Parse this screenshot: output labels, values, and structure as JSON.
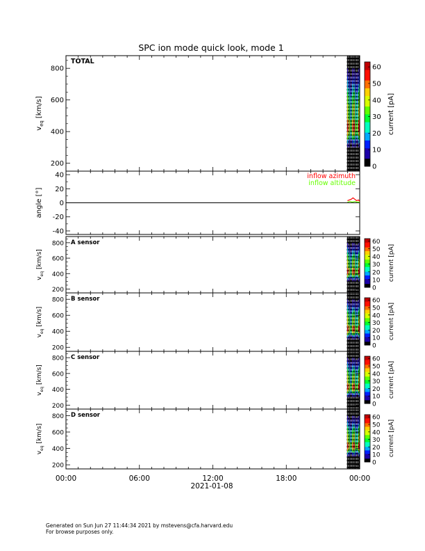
{
  "title": "SPC ion mode quick look, mode 1",
  "xaxis": {
    "date_label": "2021-01-08",
    "tick_labels": [
      "00:00",
      "06:00",
      "12:00",
      "18:00",
      "00:00"
    ],
    "range_hours": [
      0,
      24
    ]
  },
  "colorbar": {
    "label": "current [pA]",
    "ticks": [
      0,
      10,
      20,
      30,
      40,
      50,
      60
    ],
    "range": [
      0,
      63
    ],
    "colors": [
      "#000000",
      "#1c00a8",
      "#0020ff",
      "#00a8ff",
      "#00ffc0",
      "#00ff30",
      "#60ff00",
      "#d8ff00",
      "#ffd000",
      "#ff7000",
      "#ff1000",
      "#c00000"
    ]
  },
  "footer": {
    "line1": "Generated on Sun Jun 27 11:44:34 2021 by mstevens@cfa.harvard.edu",
    "line2": "For browse purposes only."
  },
  "chart_data": [
    {
      "type": "heatmap",
      "panel_label": "TOTAL",
      "ylabel_main": "v",
      "ylabel_sub": "eq",
      "ylabel_units": "[km/s]",
      "yticks": [
        200,
        400,
        600,
        800
      ],
      "ylim": [
        150,
        880
      ],
      "data_x_range_hours": [
        22.95,
        24
      ],
      "peak_current_velocity_kms": 430
    },
    {
      "type": "line",
      "ylabel": "angle [°]",
      "yticks": [
        -40,
        -20,
        0,
        20,
        40
      ],
      "ylim": [
        -45,
        45
      ],
      "zero_line": true,
      "series": [
        {
          "name": "inflow azimuth",
          "color": "#ff0000",
          "x_hours": [
            23.0,
            23.15,
            23.3,
            23.45,
            23.6,
            23.75,
            23.9,
            24.0
          ],
          "y": [
            3,
            4,
            5,
            7,
            5,
            3,
            4,
            2
          ]
        },
        {
          "name": "inflow altitude",
          "color": "#66ff00",
          "x_hours": [
            23.0,
            23.2,
            23.4,
            23.6,
            23.8,
            24.0
          ],
          "y": [
            1,
            2,
            1,
            2,
            1,
            1
          ]
        }
      ]
    },
    {
      "type": "heatmap",
      "panel_label": "A sensor",
      "ylabel_main": "v",
      "ylabel_sub": "eq",
      "ylabel_units": "[km/s]",
      "yticks": [
        200,
        400,
        600,
        800
      ],
      "ylim": [
        150,
        880
      ],
      "data_x_range_hours": [
        22.95,
        24
      ],
      "peak_current_velocity_kms": 430
    },
    {
      "type": "heatmap",
      "panel_label": "B sensor",
      "ylabel_main": "v",
      "ylabel_sub": "eq",
      "ylabel_units": "[km/s]",
      "yticks": [
        200,
        400,
        600,
        800
      ],
      "ylim": [
        150,
        880
      ],
      "data_x_range_hours": [
        22.95,
        24
      ],
      "peak_current_velocity_kms": 430
    },
    {
      "type": "heatmap",
      "panel_label": "C sensor",
      "ylabel_main": "v",
      "ylabel_sub": "eq",
      "ylabel_units": "[km/s]",
      "yticks": [
        200,
        400,
        600,
        800
      ],
      "ylim": [
        150,
        880
      ],
      "data_x_range_hours": [
        22.95,
        24
      ],
      "peak_current_velocity_kms": 430
    },
    {
      "type": "heatmap",
      "panel_label": "D sensor",
      "ylabel_main": "v",
      "ylabel_sub": "eq",
      "ylabel_units": "[km/s]",
      "yticks": [
        200,
        400,
        600,
        800
      ],
      "ylim": [
        150,
        880
      ],
      "data_x_range_hours": [
        22.95,
        24
      ],
      "peak_current_velocity_kms": 430
    }
  ]
}
